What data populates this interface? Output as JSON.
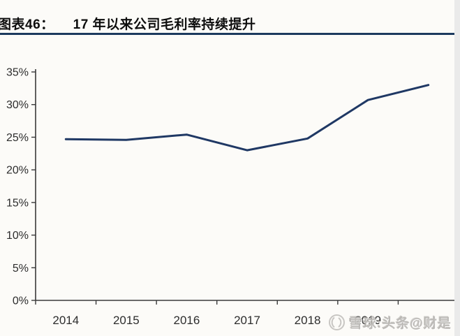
{
  "header": {
    "label": "图表46：",
    "title": "17 年以来公司毛利率持续提升"
  },
  "chart_data": {
    "type": "line",
    "title": "17 年以来公司毛利率持续提升",
    "categories": [
      "2014",
      "2015",
      "2016",
      "2017",
      "2018",
      "2019",
      ""
    ],
    "values": [
      24.7,
      24.6,
      25.4,
      23.0,
      24.8,
      30.7,
      33.0
    ],
    "unit": "%",
    "ylim": [
      0,
      35
    ],
    "ytick_step": 5,
    "ytick_labels": [
      "0%",
      "5%",
      "10%",
      "15%",
      "20%",
      "25%",
      "30%",
      "35%"
    ],
    "grid": false,
    "legend": "none",
    "line_color": "#1f3864",
    "axis_color": "#3a3a3a",
    "label_color": "#2d2d2d",
    "rule_color": "#1c3a5e"
  },
  "watermark": {
    "logo": "xueqiu-snowball-logo",
    "text": "雪球:头条@财是"
  }
}
